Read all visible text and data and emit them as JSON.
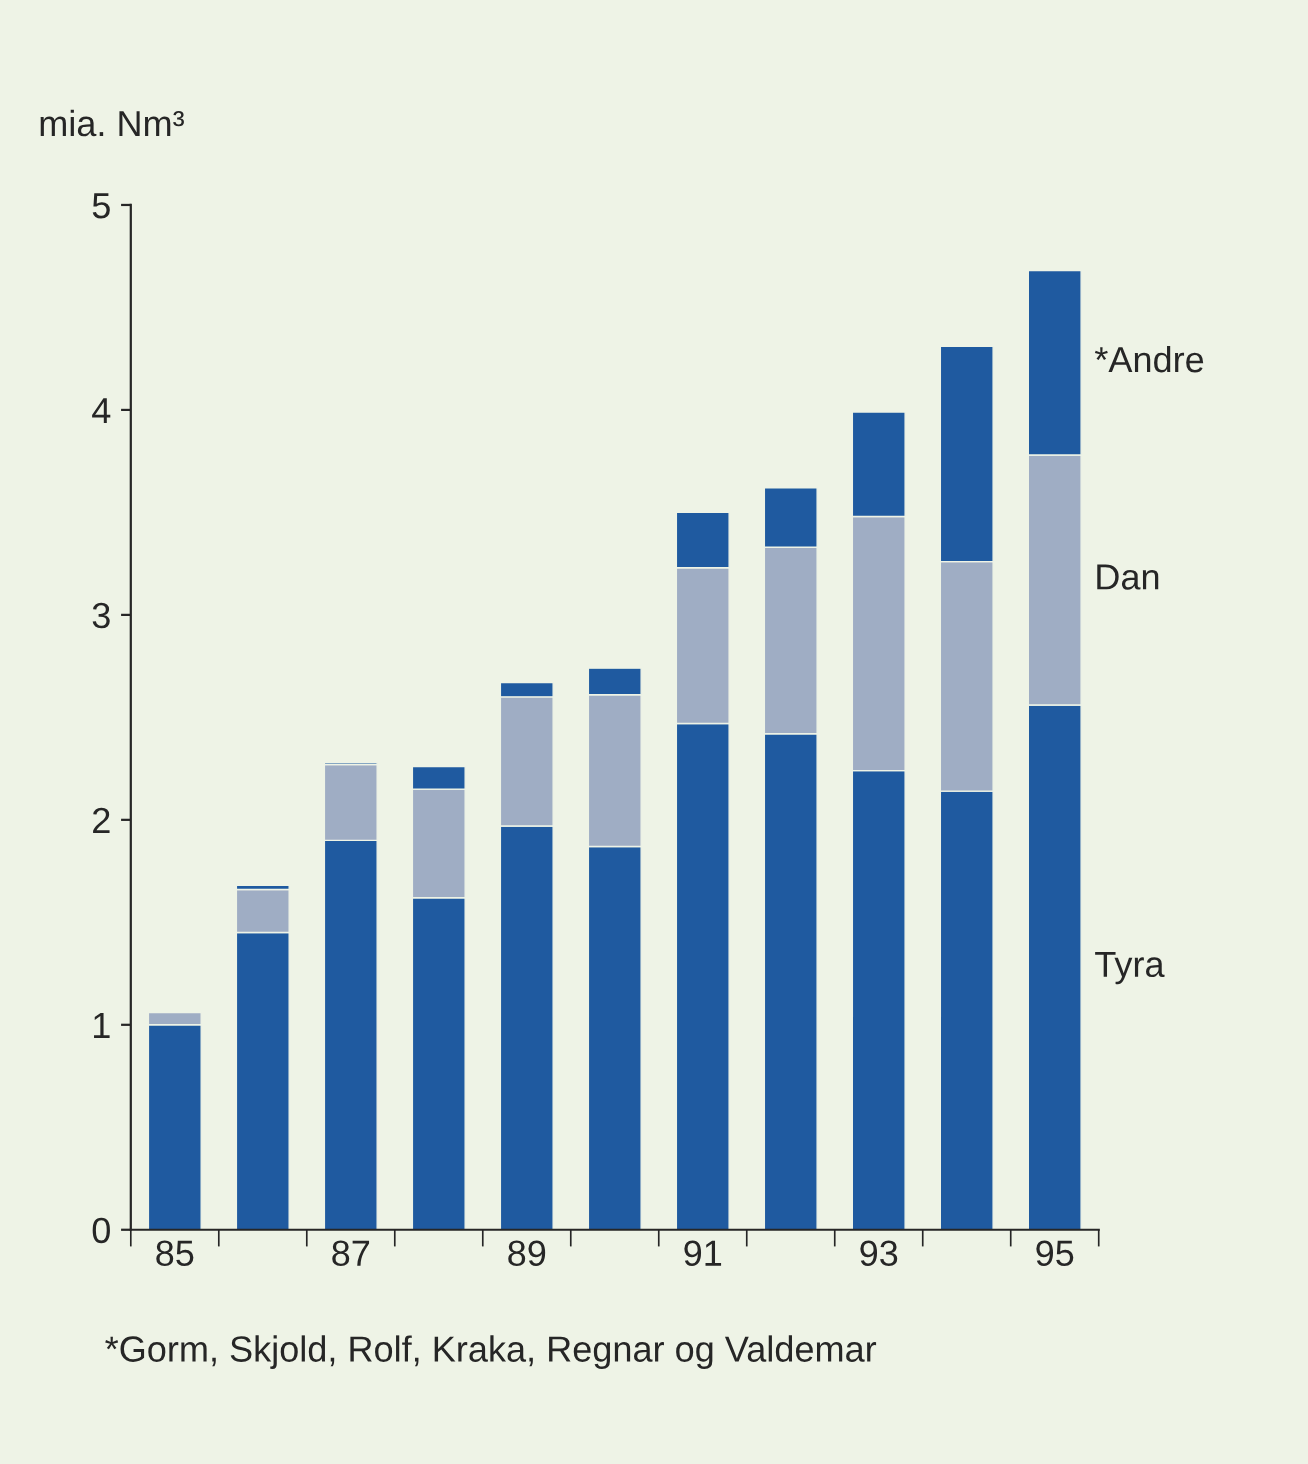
{
  "chart_data": {
    "type": "bar",
    "stacked": true,
    "ylabel": "mia. Nm³",
    "categories": [
      "85",
      null,
      "87",
      null,
      "89",
      null,
      "91",
      null,
      "93",
      null,
      "95"
    ],
    "series": [
      {
        "name": "Tyra",
        "color": "#1f5aa0",
        "values": [
          1.0,
          1.45,
          1.9,
          1.62,
          1.97,
          1.87,
          2.47,
          2.42,
          2.24,
          2.14,
          2.56
        ]
      },
      {
        "name": "Dan",
        "color": "#9fadc4",
        "values": [
          0.06,
          0.21,
          0.37,
          0.53,
          0.63,
          0.74,
          0.76,
          0.91,
          1.24,
          1.12,
          1.22
        ]
      },
      {
        "name": "*Andre",
        "color": "#1f5aa0",
        "values": [
          null,
          0.02,
          0.01,
          0.11,
          0.07,
          0.13,
          0.27,
          0.29,
          0.51,
          1.05,
          0.9
        ]
      }
    ],
    "ylim": [
      0,
      5
    ],
    "yticks": [
      0,
      1,
      2,
      3,
      4,
      5
    ],
    "grid": false,
    "legend": false,
    "annotations": [
      "*Gorm, Skjold, Rolf, Kraka, Regnar og Valdemar"
    ]
  }
}
